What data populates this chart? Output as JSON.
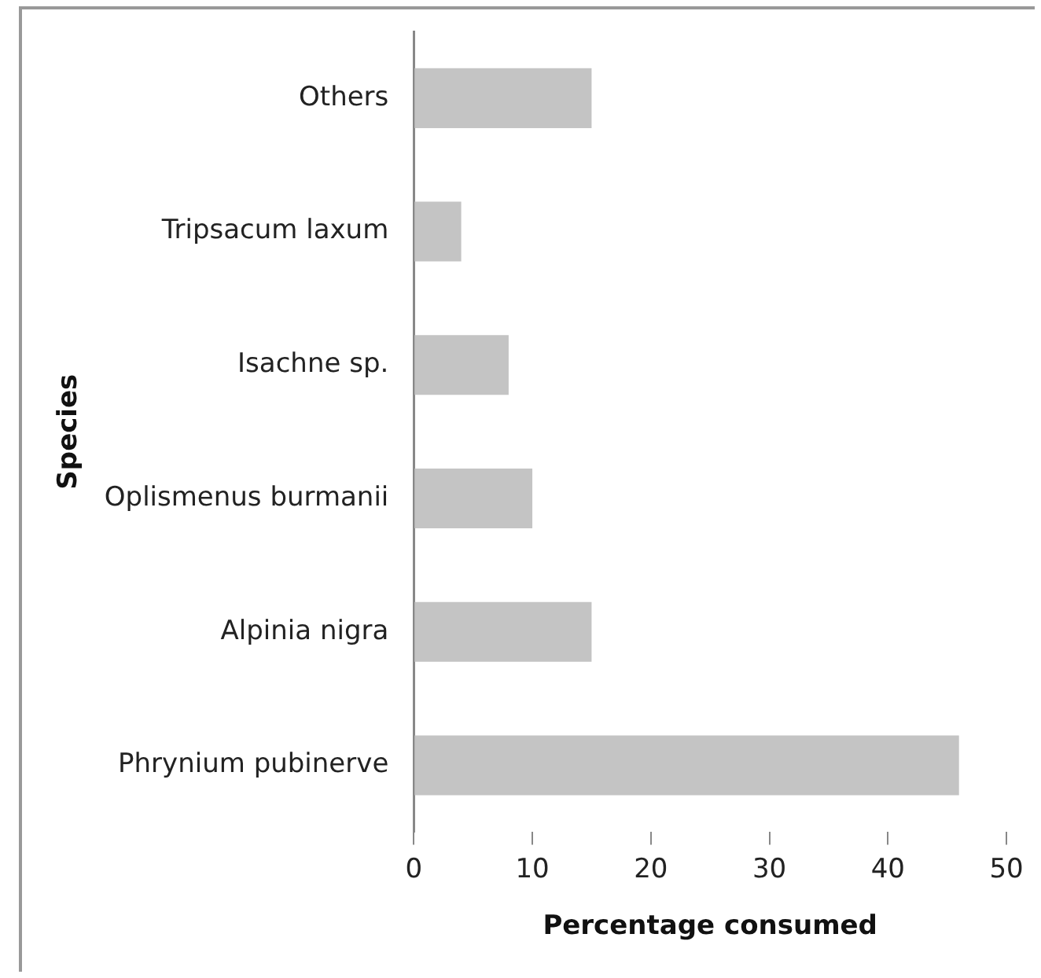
{
  "chart_data": {
    "type": "bar",
    "orientation": "horizontal",
    "xlabel": "Percentage consumed",
    "ylabel": "Species",
    "categories": [
      "Others",
      "Tripsacum laxum",
      "Isachne sp.",
      "Oplismenus burmanii",
      "Alpinia nigra",
      "Phrynium pubinerve"
    ],
    "values": [
      15,
      4,
      8,
      10,
      15,
      46
    ],
    "color": "#c4c4c4",
    "xlim": [
      0,
      50
    ],
    "xticks": [
      0,
      10,
      20,
      30,
      40,
      50
    ],
    "grid": false,
    "legend": false
  }
}
